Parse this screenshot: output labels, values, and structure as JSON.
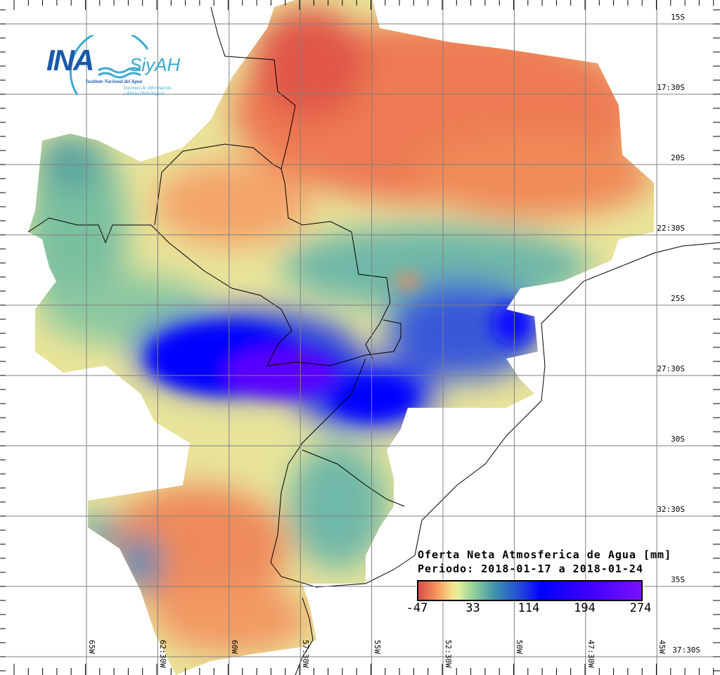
{
  "legend": {
    "title": "Oferta Neta Atmosferica de Agua [mm]",
    "period": "Periodo: 2018-01-17 a 2018-01-24",
    "ticks": [
      "-47",
      "33",
      "114",
      "194",
      "274"
    ],
    "colors": [
      "#d94c4c",
      "#f7935a",
      "#f5e08a",
      "#8ecf9a",
      "#3b8db0",
      "#0000ff",
      "#7a10ff"
    ]
  },
  "logo": {
    "name": "INA",
    "product": "SiyAH",
    "institution": "Instituto Nacional del Agua",
    "subtitle_1": "Sistemas de información",
    "subtitle_2": "y Alerta Hidrológico"
  },
  "lat_labels": [
    "15S",
    "17:30S",
    "20S",
    "22:30S",
    "25S",
    "27:30S",
    "30S",
    "32:30S",
    "35S",
    "37:30S"
  ],
  "lon_labels": [
    "65W",
    "62:30W",
    "60W",
    "57:30W",
    "55W",
    "52:30W",
    "50W",
    "47:30W",
    "45W"
  ]
}
